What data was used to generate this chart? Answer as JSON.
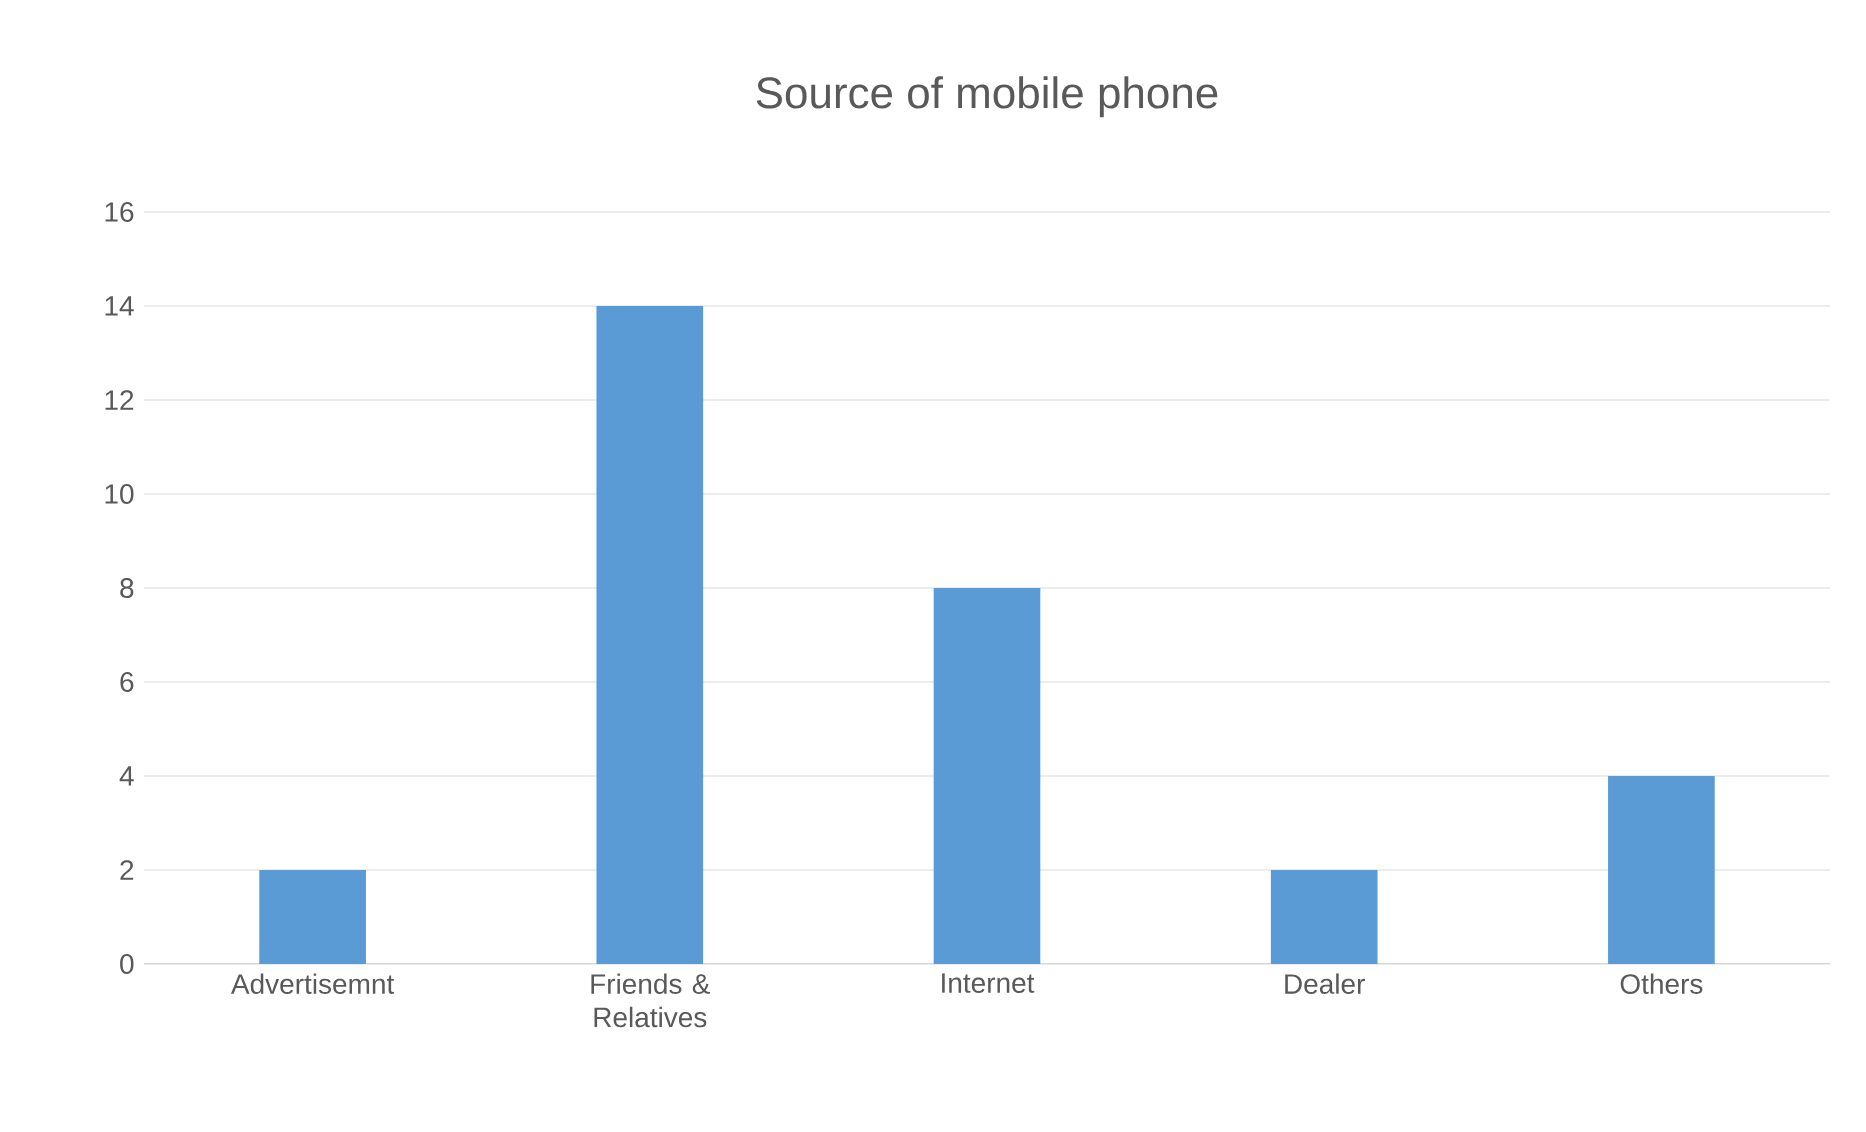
{
  "chart_data": {
    "type": "bar",
    "title": "Source of mobile phone",
    "categories": [
      "Advertisemnt",
      "Friends & Relatives",
      "Internet",
      "Dealer",
      "Others"
    ],
    "values": [
      2,
      14,
      8,
      2,
      4
    ],
    "color": "#5b9bd5",
    "ylim": [
      0,
      16
    ],
    "yticks": [
      0,
      2,
      4,
      6,
      8,
      10,
      12,
      14,
      16
    ],
    "grid": "y"
  }
}
